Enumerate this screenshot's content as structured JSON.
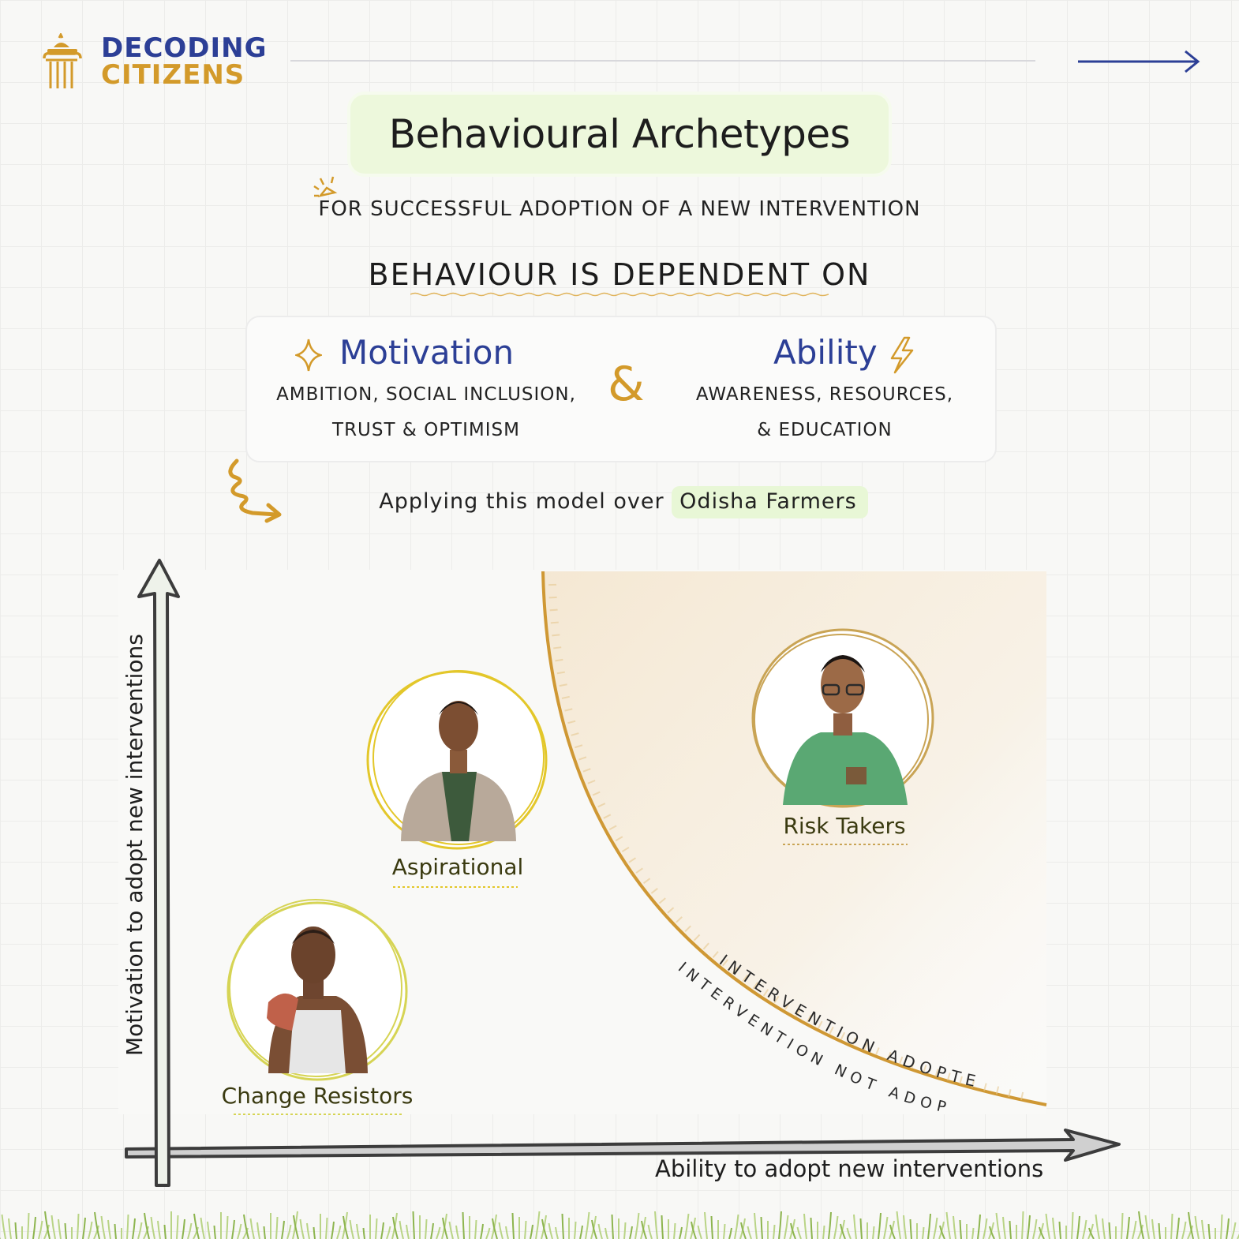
{
  "brand": {
    "line1": "DECODING",
    "line2": "CITIZENS"
  },
  "title": "Behavioural Archetypes",
  "subtitle": "FOR SUCCESSFUL ADOPTION OF A NEW INTERVENTION",
  "heading": "BEHAVIOUR IS DEPENDENT ON",
  "factors": {
    "motivation": {
      "title": "Motivation",
      "line1": "AMBITION, SOCIAL INCLUSION,",
      "line2": "TRUST & OPTIMISM"
    },
    "connector": "&",
    "ability": {
      "title": "Ability",
      "line1": "AWARENESS, RESOURCES,",
      "line2": "& EDUCATION"
    }
  },
  "applying": {
    "prefix": "Applying this model over",
    "highlight": "Odisha Farmers"
  },
  "axes": {
    "y": "Motivation to adopt new interventions",
    "x": "Ability to adopt new interventions"
  },
  "archetypes": [
    {
      "name": "Aspirational"
    },
    {
      "name": "Risk Takers"
    },
    {
      "name": "Change Resistors"
    }
  ],
  "threshold": {
    "inside": "Intervention Adopted",
    "outside": "Intervention not adopted"
  },
  "colors": {
    "brand_blue": "#2c3f96",
    "brand_gold": "#d39a2a",
    "highlight_green": "#e8f7d6"
  }
}
